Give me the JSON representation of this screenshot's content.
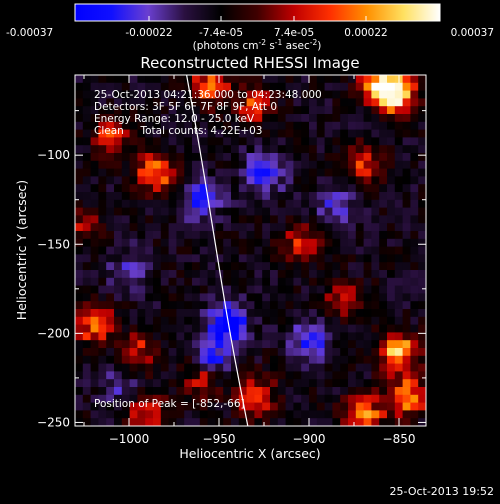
{
  "colorbar": {
    "tick_labels": [
      "-0.00037",
      "-0.00022",
      "-7.4e-05",
      "7.4e-05",
      "0.00022",
      "0.00037"
    ],
    "tick_values": [
      -0.00037,
      -0.00022,
      -7.4e-05,
      7.4e-05,
      0.00022,
      0.00037
    ],
    "range": [
      -0.00037,
      0.00037
    ],
    "units_label": "(photons cm",
    "units_exp1": "-2",
    "units_mid": " s",
    "units_exp2": "-1",
    "units_tail": " asec",
    "units_exp3": "-2",
    "units_close": ")",
    "colors": [
      "#0000ff",
      "#1010ff",
      "#6a3fd0",
      "#2a1040",
      "#000000",
      "#400000",
      "#c00000",
      "#ff3000",
      "#ff9000",
      "#ffe060",
      "#ffffff"
    ]
  },
  "chart_data": {
    "type": "heatmap",
    "title": "Reconstructed RHESSI Image",
    "xlabel": "Heliocentric X (arcsec)",
    "ylabel": "Heliocentric Y (arcsec)",
    "xlim": [
      -1030,
      -835
    ],
    "ylim": [
      -252,
      -55
    ],
    "x_ticks": [
      -1000,
      -950,
      -900,
      -850
    ],
    "x_tick_labels": [
      "−1000",
      "−950",
      "−900",
      "−850"
    ],
    "y_ticks": [
      -100,
      -150,
      -200,
      -250
    ],
    "y_tick_labels": [
      "−100",
      "−150",
      "−200",
      "−250"
    ],
    "annotations": [
      "25-Oct-2013 04:21:36.000 to 04:23:48.000",
      "Detectors: 3F 5F 6F 7F 8F 9F, Att 0",
      "Energy Range: 12.0 - 25.0 keV",
      "Clean     Total counts: 4.22E+03"
    ],
    "peak_label": "Position of Peak = [-852,-66]",
    "peak": [
      -852,
      -66
    ],
    "limb_curve": [
      [
        -968,
        -55
      ],
      [
        -960,
        -100
      ],
      [
        -952,
        -150
      ],
      [
        -944,
        -200
      ],
      [
        -934,
        -252
      ]
    ],
    "limb_color": "#ffffff",
    "bright_regions": [
      {
        "x": -1010,
        "y": -90,
        "value": 0.00022
      },
      {
        "x": -985,
        "y": -110,
        "value": 0.0003
      },
      {
        "x": -955,
        "y": -62,
        "value": 0.00026
      },
      {
        "x": -930,
        "y": -72,
        "value": 0.00022
      },
      {
        "x": -860,
        "y": -60,
        "value": 0.00037
      },
      {
        "x": -852,
        "y": -66,
        "value": 0.00037
      },
      {
        "x": -870,
        "y": -105,
        "value": 0.0002
      },
      {
        "x": -1020,
        "y": -195,
        "value": 0.00028
      },
      {
        "x": -995,
        "y": -210,
        "value": 0.00018
      },
      {
        "x": -960,
        "y": -225,
        "value": 0.00024
      },
      {
        "x": -930,
        "y": -235,
        "value": 0.00026
      },
      {
        "x": -905,
        "y": -150,
        "value": 0.0002
      },
      {
        "x": -880,
        "y": -180,
        "value": 0.00016
      },
      {
        "x": -850,
        "y": -210,
        "value": 0.00034
      },
      {
        "x": -845,
        "y": -235,
        "value": 0.00032
      },
      {
        "x": -870,
        "y": -245,
        "value": 0.0003
      },
      {
        "x": -1025,
        "y": -140,
        "value": 0.00014
      },
      {
        "x": -990,
        "y": -245,
        "value": 0.0002
      }
    ],
    "dark_regions": [
      {
        "x": -945,
        "y": -195,
        "value": -0.0003
      },
      {
        "x": -955,
        "y": -215,
        "value": -0.00025
      },
      {
        "x": -960,
        "y": -125,
        "value": -0.0002
      },
      {
        "x": -925,
        "y": -110,
        "value": -0.00018
      },
      {
        "x": -900,
        "y": -205,
        "value": -0.00016
      },
      {
        "x": -885,
        "y": -130,
        "value": -0.00014
      },
      {
        "x": -1000,
        "y": -165,
        "value": -0.00012
      },
      {
        "x": -1005,
        "y": -230,
        "value": -0.0001
      }
    ]
  },
  "footer": "25-Oct-2013 19:52"
}
